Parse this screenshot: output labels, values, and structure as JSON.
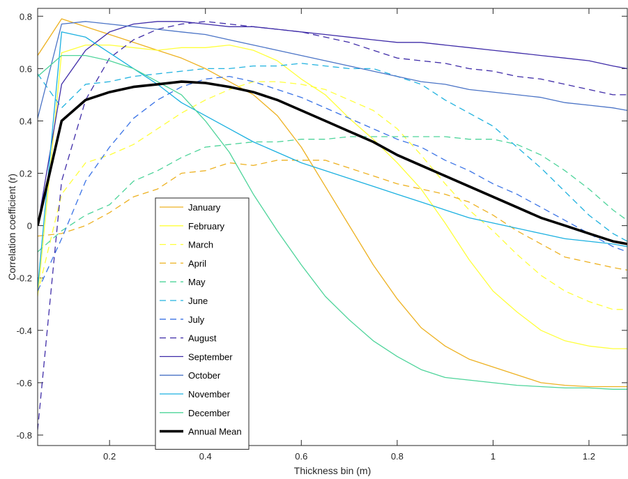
{
  "chart_data": {
    "type": "line",
    "title": "",
    "xlabel": "Thickness bin (m)",
    "ylabel": "Correlation coefficient (r)",
    "xlim": [
      0.05,
      1.28
    ],
    "ylim": [
      -0.84,
      0.83
    ],
    "xticks": [
      0.2,
      0.4,
      0.6,
      0.8,
      1,
      1.2
    ],
    "xtick_labels": [
      "0.2",
      "0.4",
      "0.6",
      "0.8",
      "1",
      "1.2"
    ],
    "yticks": [
      -0.8,
      -0.6,
      -0.4,
      -0.2,
      0,
      0.2,
      0.4,
      0.6,
      0.8
    ],
    "ytick_labels": [
      "-0.8",
      "-0.6",
      "-0.4",
      "-0.2",
      "0",
      "0.2",
      "0.4",
      "0.6",
      "0.8"
    ],
    "grid": false,
    "legend_position": "lower-left",
    "series": [
      {
        "name": "January",
        "color": "#EDB120",
        "dash": "solid",
        "width": 1.3,
        "x": [
          0.05,
          0.1,
          0.15,
          0.2,
          0.25,
          0.3,
          0.35,
          0.4,
          0.45,
          0.5,
          0.55,
          0.6,
          0.65,
          0.7,
          0.75,
          0.8,
          0.85,
          0.9,
          0.95,
          1.0,
          1.05,
          1.1,
          1.15,
          1.2,
          1.25,
          1.28
        ],
        "y": [
          0.65,
          0.79,
          0.76,
          0.73,
          0.7,
          0.67,
          0.64,
          0.6,
          0.55,
          0.5,
          0.42,
          0.3,
          0.15,
          0.0,
          -0.15,
          -0.28,
          -0.39,
          -0.46,
          -0.51,
          -0.54,
          -0.57,
          -0.6,
          -0.61,
          -0.615,
          -0.615,
          -0.615
        ]
      },
      {
        "name": "February",
        "color": "#FFFF3A",
        "dash": "solid",
        "width": 1.3,
        "x": [
          0.05,
          0.1,
          0.15,
          0.2,
          0.25,
          0.3,
          0.35,
          0.4,
          0.45,
          0.5,
          0.55,
          0.6,
          0.65,
          0.7,
          0.75,
          0.8,
          0.85,
          0.9,
          0.95,
          1.0,
          1.05,
          1.1,
          1.15,
          1.2,
          1.25,
          1.28
        ],
        "y": [
          -0.27,
          0.66,
          0.69,
          0.69,
          0.68,
          0.67,
          0.68,
          0.68,
          0.69,
          0.67,
          0.63,
          0.56,
          0.5,
          0.41,
          0.33,
          0.24,
          0.14,
          0.01,
          -0.13,
          -0.25,
          -0.33,
          -0.4,
          -0.44,
          -0.46,
          -0.47,
          -0.47
        ]
      },
      {
        "name": "March",
        "color": "#FFFF3A",
        "dash": "dash",
        "width": 1.3,
        "x": [
          0.05,
          0.1,
          0.15,
          0.2,
          0.25,
          0.3,
          0.35,
          0.4,
          0.45,
          0.5,
          0.55,
          0.6,
          0.65,
          0.7,
          0.75,
          0.8,
          0.85,
          0.9,
          0.95,
          1.0,
          1.05,
          1.1,
          1.15,
          1.2,
          1.25,
          1.28
        ],
        "y": [
          -0.26,
          0.12,
          0.24,
          0.27,
          0.31,
          0.37,
          0.43,
          0.48,
          0.52,
          0.55,
          0.55,
          0.54,
          0.52,
          0.48,
          0.44,
          0.37,
          0.27,
          0.16,
          0.06,
          -0.02,
          -0.11,
          -0.19,
          -0.25,
          -0.29,
          -0.32,
          -0.32
        ]
      },
      {
        "name": "April",
        "color": "#EDB120",
        "dash": "dash",
        "width": 1.3,
        "x": [
          0.05,
          0.1,
          0.15,
          0.2,
          0.25,
          0.3,
          0.35,
          0.4,
          0.45,
          0.5,
          0.55,
          0.6,
          0.65,
          0.7,
          0.75,
          0.8,
          0.85,
          0.9,
          0.95,
          1.0,
          1.05,
          1.1,
          1.15,
          1.2,
          1.25,
          1.28
        ],
        "y": [
          -0.04,
          -0.03,
          0.0,
          0.05,
          0.11,
          0.14,
          0.2,
          0.21,
          0.24,
          0.23,
          0.25,
          0.25,
          0.25,
          0.22,
          0.19,
          0.16,
          0.14,
          0.12,
          0.09,
          0.04,
          -0.02,
          -0.07,
          -0.12,
          -0.14,
          -0.16,
          -0.17
        ]
      },
      {
        "name": "May",
        "color": "#4DD49A",
        "dash": "dash",
        "width": 1.3,
        "x": [
          0.05,
          0.1,
          0.15,
          0.2,
          0.25,
          0.3,
          0.35,
          0.4,
          0.45,
          0.5,
          0.55,
          0.6,
          0.65,
          0.7,
          0.75,
          0.8,
          0.85,
          0.9,
          0.95,
          1.0,
          1.05,
          1.1,
          1.15,
          1.2,
          1.25,
          1.28
        ],
        "y": [
          -0.1,
          -0.02,
          0.04,
          0.08,
          0.17,
          0.21,
          0.26,
          0.3,
          0.31,
          0.32,
          0.32,
          0.33,
          0.33,
          0.34,
          0.34,
          0.34,
          0.34,
          0.34,
          0.33,
          0.33,
          0.31,
          0.27,
          0.21,
          0.14,
          0.06,
          0.02
        ]
      },
      {
        "name": "June",
        "color": "#20B2DF",
        "dash": "dash",
        "width": 1.3,
        "x": [
          0.05,
          0.1,
          0.15,
          0.2,
          0.25,
          0.3,
          0.35,
          0.4,
          0.45,
          0.5,
          0.55,
          0.6,
          0.65,
          0.7,
          0.75,
          0.8,
          0.85,
          0.9,
          0.95,
          1.0,
          1.05,
          1.1,
          1.15,
          1.2,
          1.25,
          1.28
        ],
        "y": [
          0.58,
          0.45,
          0.54,
          0.55,
          0.57,
          0.58,
          0.59,
          0.6,
          0.6,
          0.61,
          0.61,
          0.62,
          0.61,
          0.6,
          0.6,
          0.57,
          0.54,
          0.48,
          0.43,
          0.38,
          0.3,
          0.22,
          0.13,
          0.04,
          -0.03,
          -0.06
        ]
      },
      {
        "name": "July",
        "color": "#3A73E6",
        "dash": "dash",
        "width": 1.3,
        "x": [
          0.05,
          0.1,
          0.15,
          0.2,
          0.25,
          0.3,
          0.35,
          0.4,
          0.45,
          0.5,
          0.55,
          0.6,
          0.65,
          0.7,
          0.75,
          0.8,
          0.85,
          0.9,
          0.95,
          1.0,
          1.05,
          1.1,
          1.15,
          1.2,
          1.25,
          1.28
        ],
        "y": [
          -0.25,
          -0.05,
          0.17,
          0.3,
          0.41,
          0.48,
          0.53,
          0.56,
          0.57,
          0.55,
          0.52,
          0.49,
          0.45,
          0.41,
          0.37,
          0.33,
          0.3,
          0.25,
          0.21,
          0.16,
          0.12,
          0.07,
          0.02,
          -0.03,
          -0.08,
          -0.1
        ]
      },
      {
        "name": "August",
        "color": "#3F2CA8",
        "dash": "dash",
        "width": 1.3,
        "x": [
          0.05,
          0.1,
          0.15,
          0.2,
          0.25,
          0.3,
          0.35,
          0.4,
          0.45,
          0.5,
          0.55,
          0.6,
          0.65,
          0.7,
          0.75,
          0.8,
          0.85,
          0.9,
          0.95,
          1.0,
          1.05,
          1.1,
          1.15,
          1.2,
          1.25,
          1.28
        ],
        "y": [
          -0.78,
          0.17,
          0.48,
          0.64,
          0.71,
          0.75,
          0.77,
          0.78,
          0.77,
          0.76,
          0.75,
          0.74,
          0.72,
          0.7,
          0.67,
          0.64,
          0.63,
          0.62,
          0.6,
          0.59,
          0.57,
          0.56,
          0.54,
          0.52,
          0.5,
          0.5
        ]
      },
      {
        "name": "September",
        "color": "#3F2CA8",
        "dash": "solid",
        "width": 1.3,
        "x": [
          0.05,
          0.1,
          0.15,
          0.2,
          0.25,
          0.3,
          0.35,
          0.4,
          0.45,
          0.5,
          0.55,
          0.6,
          0.65,
          0.7,
          0.75,
          0.8,
          0.85,
          0.9,
          0.95,
          1.0,
          1.05,
          1.1,
          1.15,
          1.2,
          1.25,
          1.28
        ],
        "y": [
          0.0,
          0.54,
          0.67,
          0.74,
          0.77,
          0.78,
          0.78,
          0.77,
          0.76,
          0.76,
          0.75,
          0.74,
          0.73,
          0.72,
          0.71,
          0.7,
          0.7,
          0.69,
          0.68,
          0.67,
          0.66,
          0.65,
          0.64,
          0.63,
          0.61,
          0.6
        ]
      },
      {
        "name": "October",
        "color": "#4A73C6",
        "dash": "solid",
        "width": 1.3,
        "x": [
          0.05,
          0.1,
          0.15,
          0.2,
          0.25,
          0.3,
          0.35,
          0.4,
          0.45,
          0.5,
          0.55,
          0.6,
          0.65,
          0.7,
          0.75,
          0.8,
          0.85,
          0.9,
          0.95,
          1.0,
          1.05,
          1.1,
          1.15,
          1.2,
          1.25,
          1.28
        ],
        "y": [
          0.41,
          0.77,
          0.78,
          0.77,
          0.76,
          0.75,
          0.74,
          0.73,
          0.71,
          0.69,
          0.67,
          0.65,
          0.63,
          0.61,
          0.59,
          0.57,
          0.55,
          0.54,
          0.52,
          0.51,
          0.5,
          0.49,
          0.47,
          0.46,
          0.45,
          0.44
        ]
      },
      {
        "name": "November",
        "color": "#1AB0E0",
        "dash": "solid",
        "width": 1.3,
        "x": [
          0.05,
          0.1,
          0.15,
          0.2,
          0.25,
          0.3,
          0.35,
          0.4,
          0.45,
          0.5,
          0.55,
          0.6,
          0.65,
          0.7,
          0.75,
          0.8,
          0.85,
          0.9,
          0.95,
          1.0,
          1.05,
          1.1,
          1.15,
          1.2,
          1.25,
          1.28
        ],
        "y": [
          -0.24,
          0.74,
          0.72,
          0.66,
          0.6,
          0.54,
          0.47,
          0.42,
          0.37,
          0.32,
          0.28,
          0.24,
          0.21,
          0.18,
          0.15,
          0.12,
          0.09,
          0.06,
          0.03,
          0.01,
          -0.01,
          -0.03,
          -0.05,
          -0.06,
          -0.07,
          -0.08
        ]
      },
      {
        "name": "December",
        "color": "#4DD49A",
        "dash": "solid",
        "width": 1.3,
        "x": [
          0.05,
          0.1,
          0.15,
          0.2,
          0.25,
          0.3,
          0.35,
          0.4,
          0.45,
          0.5,
          0.55,
          0.6,
          0.65,
          0.7,
          0.75,
          0.8,
          0.85,
          0.9,
          0.95,
          1.0,
          1.05,
          1.1,
          1.15,
          1.2,
          1.25,
          1.28
        ],
        "y": [
          0.57,
          0.65,
          0.65,
          0.63,
          0.6,
          0.55,
          0.5,
          0.4,
          0.28,
          0.12,
          -0.02,
          -0.15,
          -0.27,
          -0.36,
          -0.44,
          -0.5,
          -0.55,
          -0.58,
          -0.59,
          -0.6,
          -0.61,
          -0.615,
          -0.62,
          -0.62,
          -0.625,
          -0.625
        ]
      },
      {
        "name": "Annual Mean",
        "color": "#000000",
        "dash": "solid",
        "width": 3.6,
        "x": [
          0.05,
          0.1,
          0.15,
          0.2,
          0.25,
          0.3,
          0.35,
          0.4,
          0.45,
          0.5,
          0.55,
          0.6,
          0.65,
          0.7,
          0.75,
          0.8,
          0.85,
          0.9,
          0.95,
          1.0,
          1.05,
          1.1,
          1.15,
          1.2,
          1.25,
          1.28
        ],
        "y": [
          0.0,
          0.4,
          0.48,
          0.51,
          0.53,
          0.54,
          0.55,
          0.545,
          0.53,
          0.51,
          0.48,
          0.44,
          0.4,
          0.36,
          0.32,
          0.27,
          0.23,
          0.19,
          0.15,
          0.11,
          0.07,
          0.03,
          0.0,
          -0.03,
          -0.06,
          -0.07
        ]
      }
    ]
  }
}
